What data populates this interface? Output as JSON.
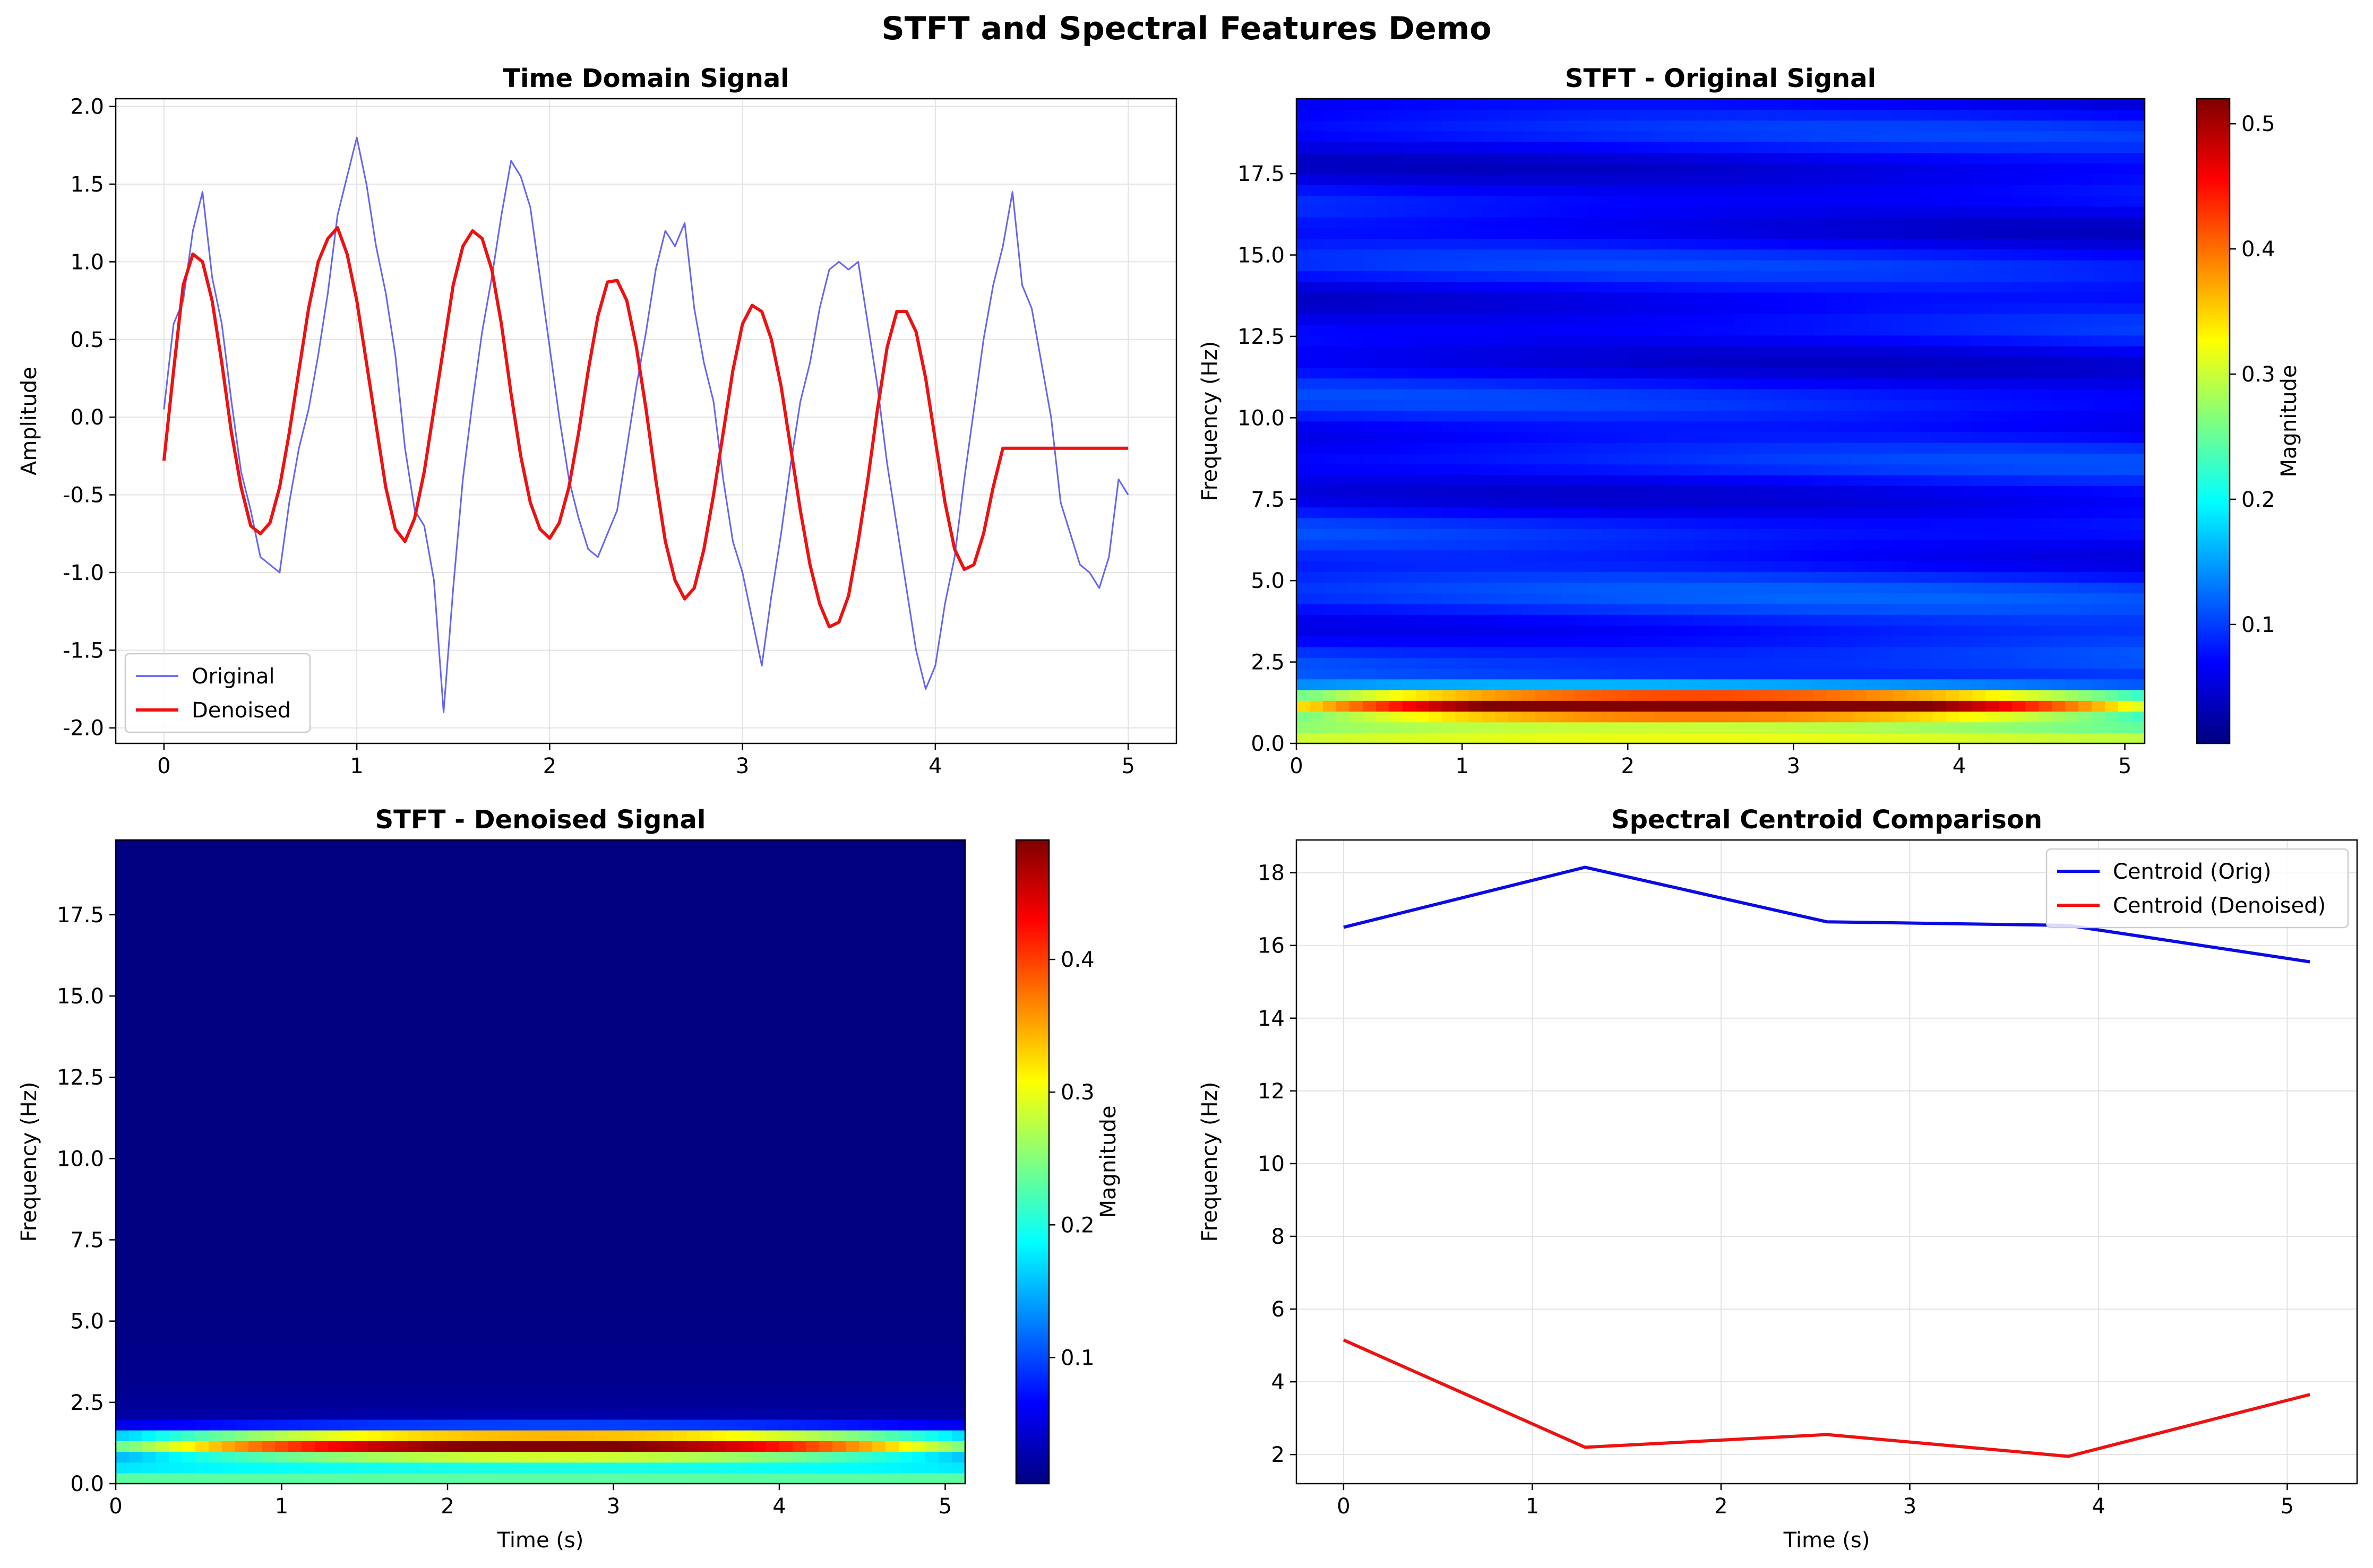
{
  "suptitle": "STFT and Spectral Features Demo",
  "colors": {
    "original_line": "#4a4af0",
    "denoised_line": "#ee1111",
    "centroid_orig": "#0a0ae6",
    "centroid_denoised": "#ee1111",
    "grid": "#e3e3e3"
  },
  "chart_data": [
    {
      "type": "line",
      "title": "Time Domain Signal",
      "xlabel": "",
      "ylabel": "Amplitude",
      "xlim": [
        -0.25,
        5.25
      ],
      "ylim": [
        -2.1,
        2.05
      ],
      "xticks": [
        0,
        1,
        2,
        3,
        4,
        5
      ],
      "yticks": [
        -2.0,
        -1.5,
        -1.0,
        -0.5,
        0.0,
        0.5,
        1.0,
        1.5,
        2.0
      ],
      "grid": true,
      "legend": "bottom-left",
      "series": [
        {
          "name": "Original",
          "color": "#4a4af0",
          "x": [
            0,
            0.05,
            0.1,
            0.15,
            0.2,
            0.25,
            0.3,
            0.35,
            0.4,
            0.45,
            0.5,
            0.55,
            0.6,
            0.65,
            0.7,
            0.75,
            0.8,
            0.85,
            0.9,
            0.95,
            1.0,
            1.05,
            1.1,
            1.15,
            1.2,
            1.25,
            1.3,
            1.35,
            1.4,
            1.45,
            1.5,
            1.55,
            1.6,
            1.65,
            1.7,
            1.75,
            1.8,
            1.85,
            1.9,
            1.95,
            2.0,
            2.05,
            2.1,
            2.15,
            2.2,
            2.25,
            2.3,
            2.35,
            2.4,
            2.45,
            2.5,
            2.55,
            2.6,
            2.65,
            2.7,
            2.75,
            2.8,
            2.85,
            2.9,
            2.95,
            3.0,
            3.05,
            3.1,
            3.15,
            3.2,
            3.25,
            3.3,
            3.35,
            3.4,
            3.45,
            3.5,
            3.55,
            3.6,
            3.65,
            3.7,
            3.75,
            3.8,
            3.85,
            3.9,
            3.95,
            4.0,
            4.05,
            4.1,
            4.15,
            4.2,
            4.25,
            4.3,
            4.35,
            4.4,
            4.45,
            4.5,
            4.55,
            4.6,
            4.65,
            4.7,
            4.75,
            4.8,
            4.85,
            4.9,
            4.95,
            5.0
          ],
          "y": [
            0.05,
            0.6,
            0.75,
            1.2,
            1.45,
            0.9,
            0.6,
            0.1,
            -0.35,
            -0.6,
            -0.9,
            -0.95,
            -1.0,
            -0.55,
            -0.2,
            0.05,
            0.4,
            0.8,
            1.3,
            1.55,
            1.8,
            1.5,
            1.1,
            0.8,
            0.4,
            -0.2,
            -0.6,
            -0.7,
            -1.05,
            -1.9,
            -1.1,
            -0.4,
            0.1,
            0.55,
            0.9,
            1.3,
            1.65,
            1.55,
            1.35,
            0.9,
            0.45,
            0.0,
            -0.4,
            -0.65,
            -0.85,
            -0.9,
            -0.75,
            -0.6,
            -0.2,
            0.2,
            0.55,
            0.95,
            1.2,
            1.1,
            1.25,
            0.7,
            0.35,
            0.1,
            -0.4,
            -0.8,
            -1.0,
            -1.3,
            -1.6,
            -1.15,
            -0.75,
            -0.3,
            0.1,
            0.35,
            0.7,
            0.95,
            1.0,
            0.95,
            1.0,
            0.6,
            0.2,
            -0.3,
            -0.7,
            -1.1,
            -1.5,
            -1.75,
            -1.6,
            -1.2,
            -0.9,
            -0.4,
            0.05,
            0.5,
            0.85,
            1.1,
            1.45,
            0.85,
            0.7,
            0.35,
            0.0,
            -0.55,
            -0.75,
            -0.95,
            -1.0,
            -1.1,
            -0.9,
            -0.4,
            -0.5
          ]
        },
        {
          "name": "Denoised",
          "color": "#ee1111",
          "x": [
            0,
            0.05,
            0.1,
            0.15,
            0.2,
            0.25,
            0.3,
            0.35,
            0.4,
            0.45,
            0.5,
            0.55,
            0.6,
            0.65,
            0.7,
            0.75,
            0.8,
            0.85,
            0.9,
            0.95,
            1.0,
            1.05,
            1.1,
            1.15,
            1.2,
            1.25,
            1.3,
            1.35,
            1.4,
            1.45,
            1.5,
            1.55,
            1.6,
            1.65,
            1.7,
            1.75,
            1.8,
            1.85,
            1.9,
            1.95,
            2.0,
            2.05,
            2.1,
            2.15,
            2.2,
            2.25,
            2.3,
            2.35,
            2.4,
            2.45,
            2.5,
            2.55,
            2.6,
            2.65,
            2.7,
            2.75,
            2.8,
            2.85,
            2.9,
            2.95,
            3.0,
            3.05,
            3.1,
            3.15,
            3.2,
            3.25,
            3.3,
            3.35,
            3.4,
            3.45,
            3.5,
            3.55,
            3.6,
            3.65,
            3.7,
            3.75,
            3.8,
            3.85,
            3.9,
            3.95,
            4.0,
            4.05,
            4.1,
            4.15,
            4.2,
            4.25,
            4.3,
            4.35,
            4.4,
            4.45,
            4.5,
            4.55,
            4.6,
            4.65,
            4.7,
            4.75,
            4.8,
            4.85,
            4.9,
            4.95,
            5.0
          ],
          "y": [
            -0.28,
            0.3,
            0.85,
            1.05,
            1.0,
            0.75,
            0.35,
            -0.1,
            -0.45,
            -0.7,
            -0.75,
            -0.68,
            -0.45,
            -0.1,
            0.3,
            0.7,
            1.0,
            1.15,
            1.22,
            1.05,
            0.75,
            0.35,
            -0.05,
            -0.45,
            -0.72,
            -0.8,
            -0.65,
            -0.35,
            0.05,
            0.45,
            0.85,
            1.1,
            1.2,
            1.15,
            0.95,
            0.6,
            0.15,
            -0.25,
            -0.55,
            -0.72,
            -0.78,
            -0.68,
            -0.45,
            -0.1,
            0.3,
            0.65,
            0.87,
            0.88,
            0.75,
            0.45,
            0.05,
            -0.4,
            -0.8,
            -1.05,
            -1.17,
            -1.1,
            -0.85,
            -0.5,
            -0.1,
            0.3,
            0.6,
            0.72,
            0.68,
            0.5,
            0.2,
            -0.2,
            -0.6,
            -0.95,
            -1.2,
            -1.35,
            -1.32,
            -1.15,
            -0.8,
            -0.4,
            0.05,
            0.45,
            0.68,
            0.68,
            0.55,
            0.25,
            -0.15,
            -0.55,
            -0.85,
            -0.98,
            -0.95,
            -0.75,
            -0.45,
            -0.2,
            -0.2,
            -0.2,
            -0.2,
            -0.2,
            -0.2,
            -0.2,
            -0.2,
            -0.2,
            -0.2,
            -0.2,
            -0.2,
            -0.2,
            -0.2
          ]
        }
      ]
    },
    {
      "type": "heatmap",
      "title": "STFT - Original Signal",
      "xlabel": "",
      "ylabel": "Frequency (Hz)",
      "xlim": [
        0,
        5.12
      ],
      "ylim": [
        0,
        19.8
      ],
      "xticks": [
        0,
        1,
        2,
        3,
        4,
        5
      ],
      "yticks": [
        0.0,
        2.5,
        5.0,
        7.5,
        10.0,
        12.5,
        15.0,
        17.5
      ],
      "colormap": "jet",
      "colorbar": {
        "label": "Magnitude",
        "range": [
          0.005,
          0.52
        ],
        "ticks": [
          0.1,
          0.2,
          0.3,
          0.4,
          0.5
        ]
      },
      "base_level": 0.07,
      "band_peak_hz": 1.2,
      "band_peak_magnitude": 0.5
    },
    {
      "type": "heatmap",
      "title": "STFT - Denoised Signal",
      "xlabel": "Time (s)",
      "ylabel": "Frequency (Hz)",
      "xlim": [
        0,
        5.12
      ],
      "ylim": [
        0,
        19.8
      ],
      "xticks": [
        0,
        1,
        2,
        3,
        4,
        5
      ],
      "yticks": [
        0.0,
        2.5,
        5.0,
        7.5,
        10.0,
        12.5,
        15.0,
        17.5
      ],
      "colormap": "jet",
      "colorbar": {
        "label": "Magnitude",
        "range": [
          0.005,
          0.49
        ],
        "ticks": [
          0.1,
          0.2,
          0.3,
          0.4
        ]
      },
      "base_level": 0.005,
      "band_peak_hz": 1.2,
      "band_peak_magnitude": 0.47
    },
    {
      "type": "line",
      "title": "Spectral Centroid Comparison",
      "xlabel": "Time (s)",
      "ylabel": "Frequency (Hz)",
      "xlim": [
        -0.25,
        5.37
      ],
      "ylim": [
        1.2,
        18.9
      ],
      "xticks": [
        0,
        1,
        2,
        3,
        4,
        5
      ],
      "yticks": [
        2,
        4,
        6,
        8,
        10,
        12,
        14,
        16,
        18
      ],
      "grid": true,
      "legend": "top-right",
      "series": [
        {
          "name": "Centroid (Orig)",
          "color": "#0a0ae6",
          "x": [
            0,
            1.28,
            2.56,
            3.84,
            5.12
          ],
          "y": [
            16.5,
            18.15,
            16.65,
            16.55,
            15.55
          ]
        },
        {
          "name": "Centroid (Denoised)",
          "color": "#ee1111",
          "x": [
            0,
            1.28,
            2.56,
            3.84,
            5.12
          ],
          "y": [
            5.15,
            2.2,
            2.55,
            1.95,
            3.65
          ]
        }
      ]
    }
  ]
}
